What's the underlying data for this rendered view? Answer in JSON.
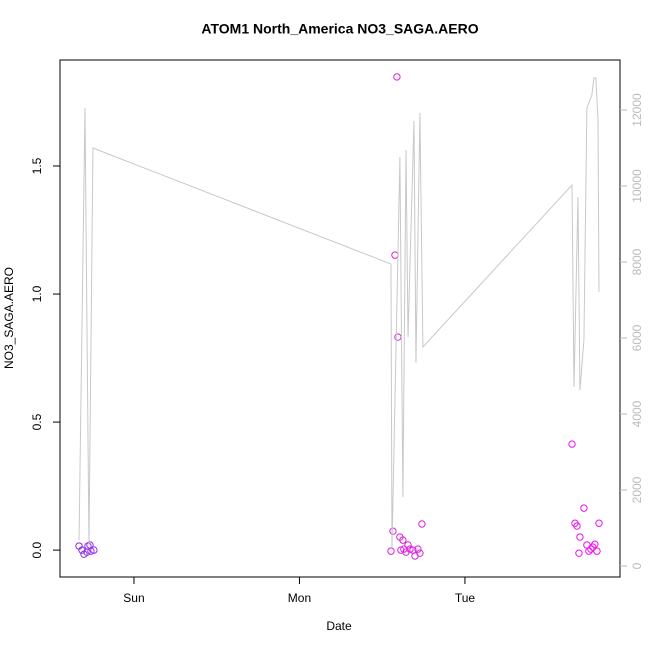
{
  "chart_data": {
    "type": "scatter",
    "title": "ATOM1 North_America NO3_SAGA.AERO",
    "x_label": "Date",
    "y_label": "NO3_SAGA.AERO",
    "xlim": [
      -0.447,
      2.937
    ],
    "xticks": [
      {
        "value": 0,
        "label": "Sun"
      },
      {
        "value": 1,
        "label": "Mon"
      },
      {
        "value": 2,
        "label": "Tue"
      }
    ],
    "ylim": [
      -0.105,
      1.914
    ],
    "yticks": [
      {
        "value": 0,
        "label": "0.0"
      },
      {
        "value": 0.5,
        "label": "0.5"
      },
      {
        "value": 1,
        "label": "1.0"
      },
      {
        "value": 1.5,
        "label": "1.5"
      }
    ],
    "y2lim": [
      -290,
      13316
    ],
    "y2ticks": [
      0,
      2000,
      4000,
      6000,
      8000,
      10000,
      12000
    ],
    "series": [
      {
        "type": "scatter",
        "x": [
          -0.332,
          -0.314,
          -0.302,
          -0.284,
          -0.278,
          -0.266,
          -0.26,
          -0.242,
          1.553,
          1.565,
          1.577,
          1.589,
          1.595,
          1.607,
          1.613,
          1.625,
          1.631,
          1.644,
          1.656,
          1.668,
          1.686,
          1.698,
          1.716,
          1.728,
          1.74,
          2.647,
          2.665,
          2.677,
          2.689,
          2.695,
          2.719,
          2.737,
          2.749,
          2.761,
          2.773,
          2.785,
          2.798,
          2.81
        ],
        "values": [
          0.016,
          0,
          -0.016,
          -0.008,
          0.016,
          0.02,
          -0.004,
          0,
          -0.004,
          0.074,
          1.152,
          1.848,
          0.832,
          0.051,
          0,
          0.039,
          0.004,
          -0.008,
          0.02,
          0.004,
          0,
          -0.023,
          0.004,
          -0.012,
          0.102,
          0.414,
          0.105,
          0.094,
          -0.012,
          0.051,
          0.164,
          0.02,
          -0.004,
          0.004,
          0.012,
          0.023,
          -0.004,
          0.105
        ],
        "colors": [
          "#8a2be2",
          "#8a2be2",
          "#8a2be2",
          "#9030e8",
          "#9030e8",
          "#9a2af0",
          "#9a2af0",
          "#9a2af0",
          "#dd22dd",
          "#dd22dd",
          "#dd22dd",
          "#dd22dd",
          "#dd22dd",
          "#dd22dd",
          "#dd22dd",
          "#dd22dd",
          "#dd22dd",
          "#dd22dd",
          "#dd22dd",
          "#dd22dd",
          "#dd22dd",
          "#dd22dd",
          "#dd22dd",
          "#dd22dd",
          "#dd22dd",
          "#ee11ee",
          "#ee11ee",
          "#ee11ee",
          "#ee11ee",
          "#ee11ee",
          "#ee11ee",
          "#ee11ee",
          "#ee11ee",
          "#ee11ee",
          "#ee11ee",
          "#ee11ee",
          "#ee11ee",
          "#ee11ee"
        ]
      },
      {
        "type": "line",
        "axis": "y2",
        "color": "#c8c8c8",
        "x": [
          -0.332,
          -0.296,
          -0.272,
          -0.248,
          1.553,
          1.559,
          1.607,
          1.625,
          1.644,
          1.656,
          1.692,
          1.704,
          1.728,
          1.746,
          2.647,
          2.659,
          2.683,
          2.695,
          2.719,
          2.737,
          2.767,
          2.779,
          2.791,
          2.804,
          2.81
        ],
        "values": [
          684,
          12053,
          553,
          11000,
          7947,
          474,
          10763,
          1816,
          10947,
          6026,
          11711,
          5342,
          11921,
          5763,
          10026,
          4711,
          9711,
          4632,
          5947,
          12053,
          12395,
          12842,
          12842,
          11737,
          7211
        ]
      }
    ]
  }
}
